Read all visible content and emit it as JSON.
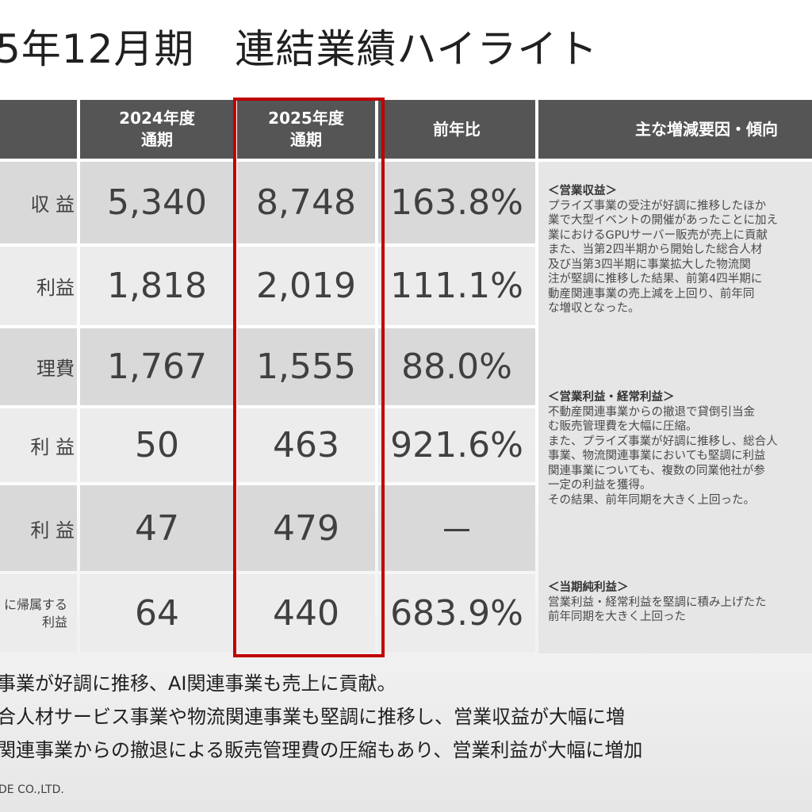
{
  "title": "5年12月期　連結業績ハイライト",
  "table": {
    "headers": {
      "y2024": "2024年度\n通期",
      "y2025": "2025年度\n通期",
      "yoy": "前年比",
      "factors": "主な増減要因・傾向"
    },
    "rows": [
      {
        "label": "収 益",
        "y2024": "5,340",
        "y2025": "8,748",
        "yoy": "163.8%"
      },
      {
        "label": "利益",
        "y2024": "1,818",
        "y2025": "2,019",
        "yoy": "111.1%"
      },
      {
        "label": "理費",
        "y2024": "1,767",
        "y2025": "1,555",
        "yoy": "88.0%"
      },
      {
        "label": "利 益",
        "y2024": "50",
        "y2025": "463",
        "yoy": "921.6%"
      },
      {
        "label": "利 益",
        "y2024": "47",
        "y2025": "479",
        "yoy": "－"
      },
      {
        "label": "に帰属する\n利益",
        "y2024": "64",
        "y2025": "440",
        "yoy": "683.9%"
      }
    ]
  },
  "factors": {
    "sales": {
      "heading": "＜営業収益＞",
      "lines": [
        "プライズ事業の受注が好調に推移したほか",
        "業で大型イベントの開催があったことに加え",
        "業におけるGPUサーバー販売が売上に貢献",
        "また、当第2四半期から開始した総合人材",
        "及び当第3四半期に事業拡大した物流関",
        "注が堅調に推移した結果、前第4四半期に",
        "動産関連事業の売上減を上回り、前年同",
        "な増収となった。"
      ]
    },
    "profit": {
      "heading": "＜営業利益・経常利益＞",
      "lines": [
        "不動産関連事業からの撤退で貸倒引当金",
        "む販売管理費を大幅に圧縮。",
        "また、プライズ事業が好調に推移し、総合人",
        "事業、物流関連事業においても堅調に利益",
        "関連事業についても、複数の同業他社が参",
        "一定の利益を獲得。",
        "その結果、前年同期を大きく上回った。"
      ]
    },
    "net": {
      "heading": "＜当期純利益＞",
      "lines": [
        "営業利益・経常利益を堅調に積み上げたた",
        "前年同期を大きく上回った"
      ]
    }
  },
  "bullets": [
    "事業が好調に推移、AI関連事業も売上に貢献。",
    "合人材サービス事業や物流関連事業も堅調に推移し、営業収益が大幅に増",
    "関連事業からの撤退による販売管理費の圧縮もあり、営業利益が大幅に増加"
  ],
  "footer": "DE CO.,LTD.",
  "colors": {
    "header_bg": "#555555",
    "highlight_border": "#c00000",
    "row_dark": "#d9d9d9",
    "row_light": "#ececec"
  }
}
